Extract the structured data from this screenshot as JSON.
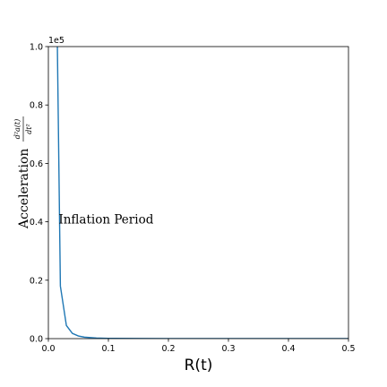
{
  "chart_data": {
    "type": "line",
    "title": "",
    "xlabel": "R(t)",
    "ylabel": "Acceleration",
    "ylabel_math_numerator": "d²a(t)",
    "ylabel_math_denominator": "dt²",
    "xlim": [
      0.0,
      0.5
    ],
    "ylim": [
      0.0,
      1.0
    ],
    "y_offset_label": "1e5",
    "x_ticks": [
      0.0,
      0.1,
      0.2,
      0.3,
      0.4,
      0.5
    ],
    "x_tick_labels": [
      "0.0",
      "0.1",
      "0.2",
      "0.3",
      "0.4",
      "0.5"
    ],
    "y_ticks": [
      0.0,
      0.2,
      0.4,
      0.6,
      0.8,
      1.0
    ],
    "y_tick_labels": [
      "0.0",
      "0.2",
      "0.4",
      "0.6",
      "0.8",
      "1.0"
    ],
    "grid": false,
    "series": [
      {
        "color": "#1f77b4",
        "x": [
          0.015,
          0.02,
          0.03,
          0.04,
          0.05,
          0.06,
          0.08,
          0.1,
          0.15,
          0.2,
          0.3,
          0.4,
          0.5
        ],
        "y": [
          1.0,
          0.18,
          0.045,
          0.018,
          0.009,
          0.005,
          0.002,
          0.001,
          0.0004,
          0.0002,
          0.0001,
          5e-05,
          3e-05
        ]
      }
    ],
    "annotations": [
      {
        "text": "Inflation Period",
        "x": 0.02,
        "y": 0.41
      }
    ]
  }
}
